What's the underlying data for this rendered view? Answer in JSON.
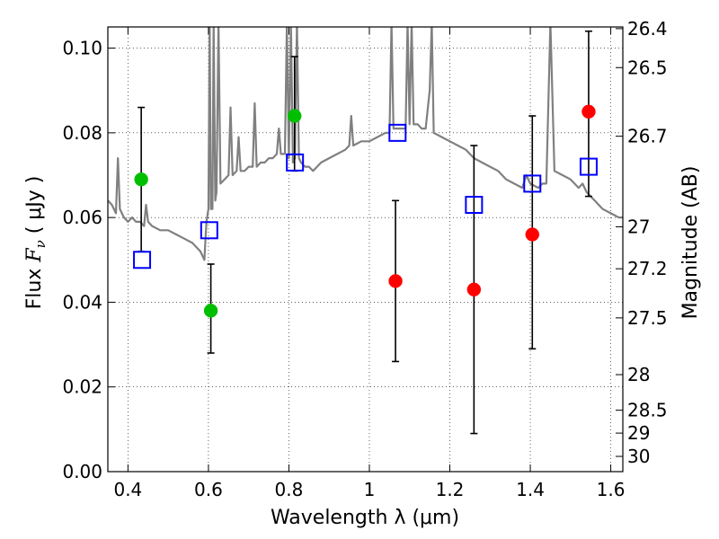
{
  "chart_data": {
    "type": "scatter",
    "title": "",
    "xlabel": "Wavelength  λ (μm)",
    "ylabel_prefix": "Flux  ",
    "ylabel_symbol": "F",
    "ylabel_subscript": "ν",
    "ylabel_suffix": "  ( μJy )",
    "ylabel_right": "Magnitude (AB)",
    "xlim": [
      0.35,
      1.63
    ],
    "ylim": [
      0.0,
      0.105
    ],
    "grid": true,
    "grid_style": "dotted",
    "x_ticks": [
      0.4,
      0.6,
      0.8,
      1.0,
      1.2,
      1.4,
      1.6
    ],
    "x_tick_labels": [
      "0.4",
      "0.6",
      "0.8",
      "1",
      "1.2",
      "1.4",
      "1.6"
    ],
    "y_ticks": [
      0.0,
      0.02,
      0.04,
      0.06,
      0.08,
      0.1
    ],
    "y_tick_labels": [
      "0.00",
      "0.02",
      "0.04",
      "0.06",
      "0.08",
      "0.10"
    ],
    "right_ticks": [
      {
        "flux": 0.1046,
        "label": "26.4"
      },
      {
        "flux": 0.0954,
        "label": "26.5"
      },
      {
        "flux": 0.0792,
        "label": "26.7"
      },
      {
        "flux": 0.0578,
        "label": "27"
      },
      {
        "flux": 0.0479,
        "label": "27.2"
      },
      {
        "flux": 0.0363,
        "label": "27.5"
      },
      {
        "flux": 0.0229,
        "label": "28"
      },
      {
        "flux": 0.0145,
        "label": "28.5"
      },
      {
        "flux": 0.0091,
        "label": "29"
      },
      {
        "flux": 0.0036,
        "label": "30"
      }
    ],
    "colors": {
      "spectrum": "#808080",
      "green": "#00bf00",
      "red": "#ff0000",
      "model_box": "#0000ff",
      "error_bar": "#000000"
    },
    "spectrum": [
      [
        0.35,
        0.064
      ],
      [
        0.36,
        0.063
      ],
      [
        0.37,
        0.061
      ],
      [
        0.375,
        0.074
      ],
      [
        0.38,
        0.062
      ],
      [
        0.39,
        0.06
      ],
      [
        0.4,
        0.059
      ],
      [
        0.41,
        0.06
      ],
      [
        0.42,
        0.059
      ],
      [
        0.43,
        0.059
      ],
      [
        0.44,
        0.058
      ],
      [
        0.445,
        0.063
      ],
      [
        0.45,
        0.059
      ],
      [
        0.46,
        0.058
      ],
      [
        0.48,
        0.057
      ],
      [
        0.5,
        0.057
      ],
      [
        0.52,
        0.056
      ],
      [
        0.54,
        0.055
      ],
      [
        0.56,
        0.054
      ],
      [
        0.58,
        0.052
      ],
      [
        0.59,
        0.05
      ],
      [
        0.595,
        0.059
      ],
      [
        0.6,
        0.062
      ],
      [
        0.603,
        0.106
      ],
      [
        0.606,
        0.062
      ],
      [
        0.61,
        0.062
      ],
      [
        0.613,
        0.106
      ],
      [
        0.617,
        0.064
      ],
      [
        0.62,
        0.066
      ],
      [
        0.625,
        0.106
      ],
      [
        0.63,
        0.068
      ],
      [
        0.64,
        0.069
      ],
      [
        0.65,
        0.07
      ],
      [
        0.655,
        0.086
      ],
      [
        0.66,
        0.07
      ],
      [
        0.67,
        0.071
      ],
      [
        0.675,
        0.079
      ],
      [
        0.68,
        0.071
      ],
      [
        0.69,
        0.071
      ],
      [
        0.7,
        0.072
      ],
      [
        0.71,
        0.072
      ],
      [
        0.715,
        0.087
      ],
      [
        0.72,
        0.072
      ],
      [
        0.73,
        0.073
      ],
      [
        0.74,
        0.073
      ],
      [
        0.75,
        0.074
      ],
      [
        0.76,
        0.074
      ],
      [
        0.77,
        0.075
      ],
      [
        0.775,
        0.081
      ],
      [
        0.78,
        0.075
      ],
      [
        0.79,
        0.075
      ],
      [
        0.795,
        0.106
      ],
      [
        0.8,
        0.074
      ],
      [
        0.805,
        0.106
      ],
      [
        0.81,
        0.073
      ],
      [
        0.815,
        0.074
      ],
      [
        0.82,
        0.106
      ],
      [
        0.825,
        0.074
      ],
      [
        0.83,
        0.073
      ],
      [
        0.84,
        0.072
      ],
      [
        0.85,
        0.072
      ],
      [
        0.86,
        0.071
      ],
      [
        0.87,
        0.072
      ],
      [
        0.88,
        0.073
      ],
      [
        0.9,
        0.074
      ],
      [
        0.92,
        0.075
      ],
      [
        0.94,
        0.076
      ],
      [
        0.95,
        0.077
      ],
      [
        0.955,
        0.084
      ],
      [
        0.96,
        0.077
      ],
      [
        0.98,
        0.078
      ],
      [
        1.0,
        0.078
      ],
      [
        1.02,
        0.079
      ],
      [
        1.04,
        0.08
      ],
      [
        1.05,
        0.08
      ],
      [
        1.055,
        0.106
      ],
      [
        1.06,
        0.081
      ],
      [
        1.08,
        0.081
      ],
      [
        1.09,
        0.081
      ],
      [
        1.095,
        0.106
      ],
      [
        1.1,
        0.082
      ],
      [
        1.105,
        0.106
      ],
      [
        1.11,
        0.082
      ],
      [
        1.12,
        0.082
      ],
      [
        1.13,
        0.081
      ],
      [
        1.14,
        0.081
      ],
      [
        1.15,
        0.09
      ],
      [
        1.155,
        0.106
      ],
      [
        1.16,
        0.08
      ],
      [
        1.18,
        0.079
      ],
      [
        1.2,
        0.078
      ],
      [
        1.22,
        0.077
      ],
      [
        1.24,
        0.076
      ],
      [
        1.26,
        0.074
      ],
      [
        1.28,
        0.073
      ],
      [
        1.3,
        0.072
      ],
      [
        1.32,
        0.071
      ],
      [
        1.34,
        0.069
      ],
      [
        1.36,
        0.068
      ],
      [
        1.38,
        0.067
      ],
      [
        1.39,
        0.07
      ],
      [
        1.4,
        0.068
      ],
      [
        1.42,
        0.067
      ],
      [
        1.43,
        0.068
      ],
      [
        1.44,
        0.068
      ],
      [
        1.45,
        0.106
      ],
      [
        1.46,
        0.071
      ],
      [
        1.48,
        0.07
      ],
      [
        1.5,
        0.069
      ],
      [
        1.52,
        0.067
      ],
      [
        1.53,
        0.068
      ],
      [
        1.54,
        0.066
      ],
      [
        1.55,
        0.065
      ],
      [
        1.56,
        0.064
      ],
      [
        1.58,
        0.062
      ],
      [
        1.6,
        0.061
      ],
      [
        1.62,
        0.06
      ],
      [
        1.63,
        0.06
      ]
    ],
    "green_points": [
      {
        "x": 0.433,
        "y": 0.069,
        "err_lo": 0.052,
        "err_hi": 0.086
      },
      {
        "x": 0.606,
        "y": 0.038,
        "err_lo": 0.028,
        "err_hi": 0.049
      },
      {
        "x": 0.814,
        "y": 0.084,
        "err_lo": 0.071,
        "err_hi": 0.098
      }
    ],
    "red_points": [
      {
        "x": 1.065,
        "y": 0.045,
        "err_lo": 0.026,
        "err_hi": 0.064
      },
      {
        "x": 1.26,
        "y": 0.043,
        "err_lo": 0.009,
        "err_hi": 0.077
      },
      {
        "x": 1.405,
        "y": 0.056,
        "err_lo": 0.029,
        "err_hi": 0.084
      },
      {
        "x": 1.545,
        "y": 0.085,
        "err_lo": 0.065,
        "err_hi": 0.104
      }
    ],
    "model_points": [
      {
        "x": 0.435,
        "y": 0.05
      },
      {
        "x": 0.602,
        "y": 0.057
      },
      {
        "x": 0.815,
        "y": 0.073
      },
      {
        "x": 1.07,
        "y": 0.08
      },
      {
        "x": 1.26,
        "y": 0.063
      },
      {
        "x": 1.405,
        "y": 0.068
      },
      {
        "x": 1.545,
        "y": 0.072
      }
    ]
  }
}
